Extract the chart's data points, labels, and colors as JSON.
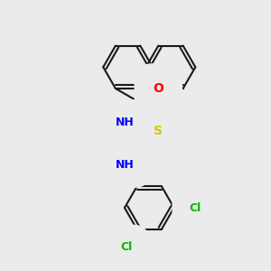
{
  "background_color": "#ebebeb",
  "bond_color": "#1a1a1a",
  "bond_width": 1.5,
  "atom_colors": {
    "N": "#0000ff",
    "O": "#ff0000",
    "S": "#cccc00",
    "Cl": "#00bb00",
    "C": "#1a1a1a"
  },
  "font_size": 9,
  "double_sep": 0.06
}
